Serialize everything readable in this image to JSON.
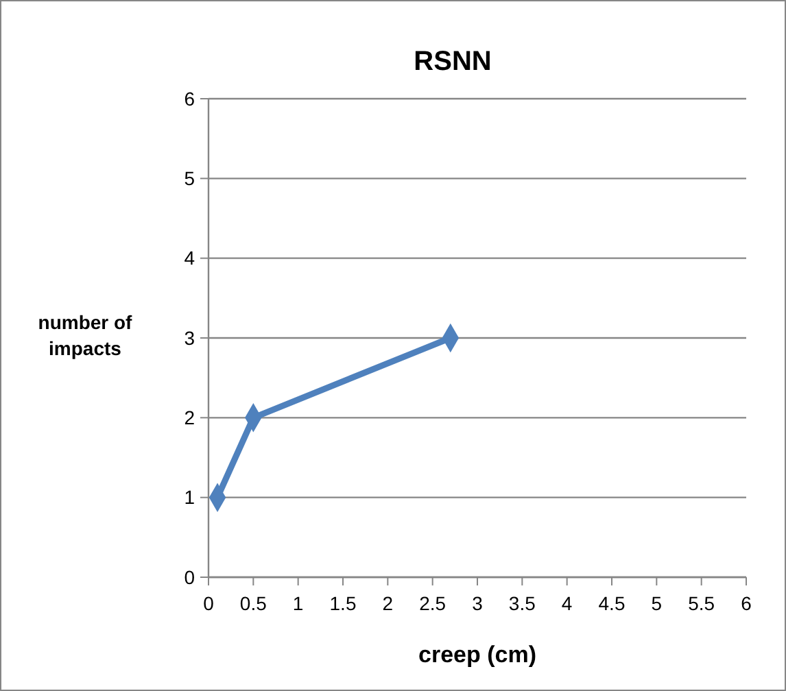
{
  "chart_data": {
    "type": "line",
    "title": "RSNN",
    "xlabel": "creep (cm)",
    "ylabel": "number of impacts",
    "x": [
      0.1,
      0.5,
      2.7
    ],
    "series": [
      {
        "color": "#4f81bd",
        "values": [
          1,
          2,
          3
        ]
      }
    ],
    "xlim": [
      0,
      6
    ],
    "xticks": [
      0,
      0.5,
      1,
      1.5,
      2,
      2.5,
      3,
      3.5,
      4,
      4.5,
      5,
      5.5,
      6
    ],
    "ylim": [
      0,
      6
    ],
    "yticks": [
      0,
      1,
      2,
      3,
      4,
      5,
      6
    ],
    "grid": "y",
    "marker": "diamond",
    "line_style": "solid"
  }
}
